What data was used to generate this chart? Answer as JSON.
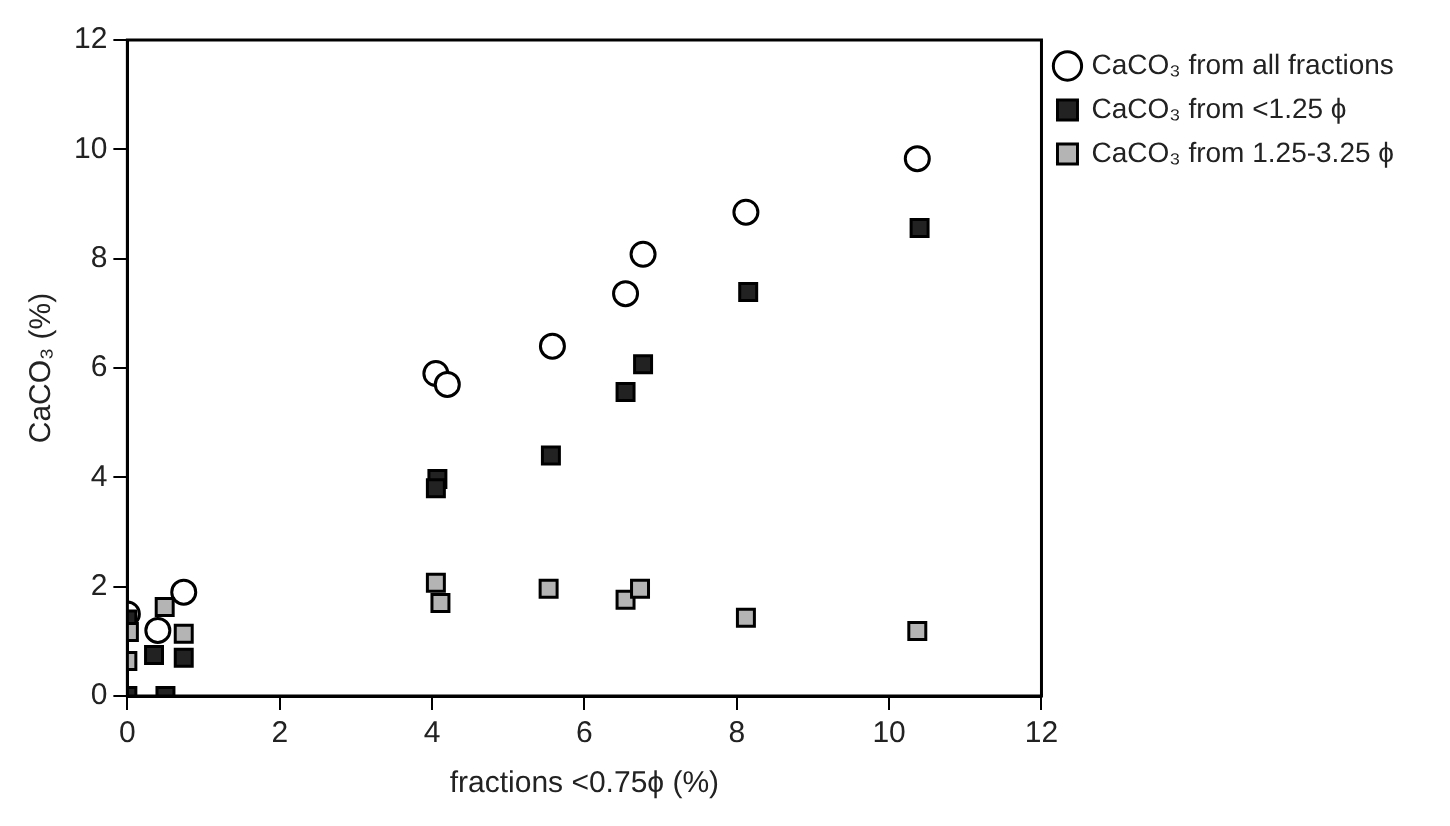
{
  "chart_data": {
    "type": "scatter",
    "xlabel": "fractions <0.75ϕ (%)",
    "ylabel": "CaCO₃ (%)",
    "xlim": [
      0,
      12
    ],
    "xticks": [
      0,
      2,
      4,
      6,
      8,
      10,
      12
    ],
    "ylim": [
      0,
      12
    ],
    "yticks": [
      0,
      2,
      4,
      6,
      8,
      10,
      12
    ],
    "grid": false,
    "legend": "top right",
    "series": [
      {
        "name": "CaCO₃ from all fractions",
        "color": "#000000",
        "marker": "circle",
        "x": [
          10.37,
          8.12,
          6.77,
          6.54,
          5.58,
          4.05,
          4.2,
          0.74,
          0,
          0.4
        ],
        "values": [
          9.83,
          8.85,
          8.08,
          7.36,
          6.4,
          5.9,
          5.7,
          1.9,
          1.5,
          1.2
        ]
      },
      {
        "name": "CaCO₃ from <1.25 ϕ",
        "color": "#222222",
        "marker": "square",
        "x": [
          10.4,
          8.15,
          6.77,
          6.54,
          5.56,
          4.07,
          4.05,
          0,
          0.5,
          0.74,
          0,
          0.35
        ],
        "values": [
          8.56,
          7.39,
          6.07,
          5.56,
          4.4,
          3.97,
          3.8,
          0,
          0,
          0.7,
          1.4,
          0.75
        ]
      },
      {
        "name": "CaCO₃ from 1.25-3.25 ϕ",
        "color": "#b4b4b4",
        "marker": "square",
        "x": [
          10.37,
          8.12,
          6.54,
          6.73,
          5.53,
          4.05,
          4.11,
          0.49,
          0.02,
          0.74,
          0
        ],
        "values": [
          1.19,
          1.43,
          1.76,
          1.96,
          1.96,
          2.07,
          1.7,
          1.63,
          1.17,
          1.14,
          0.64
        ]
      }
    ]
  }
}
